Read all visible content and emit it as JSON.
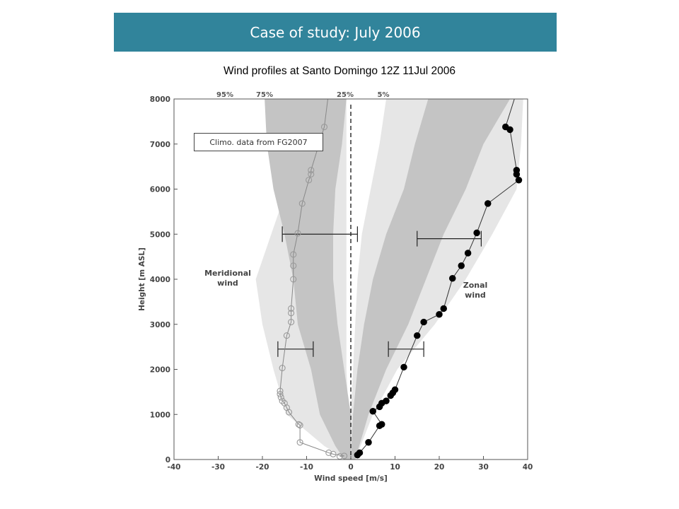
{
  "slide": {
    "title": "Case of study: July 2006",
    "subtitle": "Wind profiles at Santo Domingo 12Z 11Jul 2006",
    "note": "Climo. data from FG2007"
  },
  "colors": {
    "banner": "#31849b",
    "band_outer": "#e6e6e6",
    "band_inner": "#c4c4c4",
    "meridional_marker": "#999999",
    "zonal_marker": "#000000"
  },
  "chart_data": {
    "type": "scatter",
    "xlabel": "Wind speed [m/s]",
    "ylabel": "Height [m ASL]",
    "xlim": [
      -40,
      40
    ],
    "ylim": [
      0,
      8000
    ],
    "xticks": [
      -40,
      -30,
      -20,
      -10,
      0,
      10,
      20,
      30,
      40
    ],
    "yticks": [
      0,
      1000,
      2000,
      3000,
      4000,
      5000,
      6000,
      7000,
      8000
    ],
    "percentile_labels": [
      "95%",
      "75%",
      "25%",
      "5%"
    ],
    "annotations": [
      "Meridional wind",
      "Zonal wind"
    ],
    "series": [
      {
        "name": "Meridional wind",
        "marker": "open-circle",
        "points": [
          [
            -1.5,
            80
          ],
          [
            -2.5,
            70
          ],
          [
            -4,
            120
          ],
          [
            -5,
            150
          ],
          [
            -11.5,
            380
          ],
          [
            -11.5,
            760
          ],
          [
            -11.8,
            780
          ],
          [
            -14,
            1050
          ],
          [
            -14.5,
            1150
          ],
          [
            -15,
            1250
          ],
          [
            -15.5,
            1300
          ],
          [
            -15.8,
            1380
          ],
          [
            -16,
            1450
          ],
          [
            -16,
            1520
          ],
          [
            -15.5,
            2030
          ],
          [
            -14.5,
            2750
          ],
          [
            -13.5,
            3050
          ],
          [
            -13.5,
            3250
          ],
          [
            -13.5,
            3350
          ],
          [
            -13,
            4000
          ],
          [
            -13,
            4300
          ],
          [
            -13,
            4550
          ],
          [
            -12,
            5020
          ],
          [
            -11,
            5680
          ],
          [
            -9.5,
            6200
          ],
          [
            -9,
            6330
          ],
          [
            -9,
            6420
          ],
          [
            -6,
            7380
          ]
        ]
      },
      {
        "name": "Zonal wind",
        "marker": "filled-circle",
        "points": [
          [
            1.5,
            100
          ],
          [
            2,
            150
          ],
          [
            4,
            380
          ],
          [
            6.5,
            750
          ],
          [
            7,
            780
          ],
          [
            5,
            1070
          ],
          [
            6.5,
            1170
          ],
          [
            7,
            1250
          ],
          [
            8,
            1300
          ],
          [
            9,
            1420
          ],
          [
            9.5,
            1480
          ],
          [
            10,
            1550
          ],
          [
            12,
            2050
          ],
          [
            15,
            2750
          ],
          [
            16.5,
            3050
          ],
          [
            20,
            3220
          ],
          [
            21,
            3350
          ],
          [
            23,
            4020
          ],
          [
            25,
            4300
          ],
          [
            26.5,
            4580
          ],
          [
            28.5,
            5030
          ],
          [
            31,
            5680
          ],
          [
            38,
            6200
          ],
          [
            37.5,
            6330
          ],
          [
            37.5,
            6420
          ],
          [
            36,
            7320
          ],
          [
            35,
            7380
          ]
        ]
      }
    ],
    "bands": [
      {
        "name": "Meridional 5-95%",
        "level": "outer",
        "left": [
          [
            -15.5,
            8000
          ],
          [
            -13.5,
            7000
          ],
          [
            -14.5,
            6000
          ],
          [
            -21.5,
            4000
          ],
          [
            -20,
            3000
          ],
          [
            -17.5,
            2000
          ],
          [
            -14.5,
            1000
          ],
          [
            -6,
            300
          ],
          [
            -1,
            0
          ]
        ],
        "right": [
          [
            -1,
            8000
          ],
          [
            -1,
            5000
          ],
          [
            -1,
            3000
          ],
          [
            -1,
            2000
          ],
          [
            -0.5,
            1000
          ],
          [
            0,
            0
          ]
        ]
      },
      {
        "name": "Meridional 25-75%",
        "level": "inner",
        "left": [
          [
            -19.5,
            8000
          ],
          [
            -19,
            7000
          ],
          [
            -17.5,
            6000
          ],
          [
            -15,
            5000
          ],
          [
            -13,
            4000
          ],
          [
            -12,
            3000
          ],
          [
            -9,
            2000
          ],
          [
            -7,
            1000
          ],
          [
            -3.5,
            300
          ],
          [
            -1.5,
            0
          ]
        ],
        "right": [
          [
            -1,
            8000
          ],
          [
            -2,
            7000
          ],
          [
            -3.5,
            6000
          ],
          [
            -4,
            5000
          ],
          [
            -4,
            4000
          ],
          [
            -3,
            3000
          ],
          [
            -1.5,
            2000
          ],
          [
            0,
            1000
          ],
          [
            0,
            0
          ]
        ]
      },
      {
        "name": "Zonal 5-95%",
        "level": "outer",
        "left": [
          [
            8,
            8000
          ],
          [
            6.5,
            7000
          ],
          [
            4.5,
            6000
          ],
          [
            2.5,
            5000
          ],
          [
            1.5,
            4000
          ],
          [
            1,
            3000
          ],
          [
            0.5,
            2000
          ],
          [
            0,
            1000
          ],
          [
            0,
            0
          ]
        ],
        "right": [
          [
            39,
            8000
          ],
          [
            38.5,
            7000
          ],
          [
            37.5,
            6000
          ],
          [
            32,
            5000
          ],
          [
            26,
            4000
          ],
          [
            19,
            3000
          ],
          [
            10.5,
            2000
          ],
          [
            5,
            1000
          ],
          [
            1,
            0
          ]
        ]
      },
      {
        "name": "Zonal 25-75%",
        "level": "inner",
        "left": [
          [
            17.5,
            8000
          ],
          [
            14.5,
            7000
          ],
          [
            12,
            6000
          ],
          [
            8,
            5000
          ],
          [
            5,
            4000
          ],
          [
            3,
            3000
          ],
          [
            1.5,
            2000
          ],
          [
            0.5,
            1000
          ],
          [
            0,
            0
          ]
        ],
        "right": [
          [
            36,
            8000
          ],
          [
            30,
            7000
          ],
          [
            26,
            6000
          ],
          [
            21,
            5000
          ],
          [
            17,
            4000
          ],
          [
            13,
            3000
          ],
          [
            8,
            2000
          ],
          [
            4,
            1000
          ],
          [
            1,
            0
          ]
        ]
      }
    ],
    "error_bars": [
      {
        "y": 5000,
        "x_min": -15.5,
        "x_max": 1.5
      },
      {
        "y": 2450,
        "x_min": -16.5,
        "x_max": -8.5
      },
      {
        "y": 4900,
        "x_min": 15,
        "x_max": 29.5
      },
      {
        "y": 2450,
        "x_min": 8.5,
        "x_max": 16.5
      }
    ]
  }
}
